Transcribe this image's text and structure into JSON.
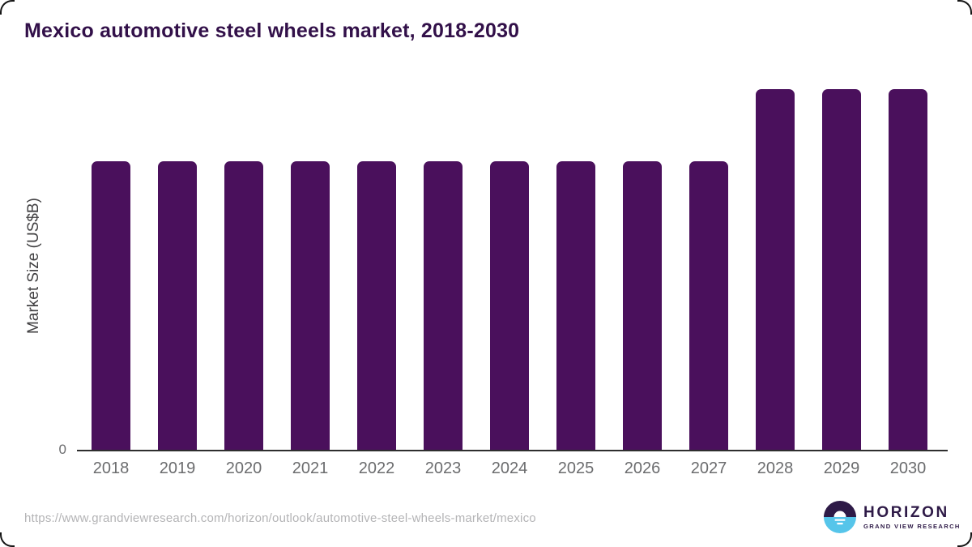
{
  "title": {
    "text": "Mexico automotive steel wheels market, 2018-2030",
    "color": "#321049"
  },
  "chart_data": {
    "type": "bar",
    "title": "Mexico automotive steel wheels market, 2018-2030",
    "categories": [
      "2018",
      "2019",
      "2020",
      "2021",
      "2022",
      "2023",
      "2024",
      "2025",
      "2026",
      "2027",
      "2028",
      "2029",
      "2030"
    ],
    "values": [
      0.8,
      0.8,
      0.8,
      0.8,
      0.8,
      0.8,
      0.8,
      0.8,
      0.8,
      0.8,
      1.0,
      1.0,
      1.0
    ],
    "xlabel": "",
    "ylabel": "Market Size (US$B)",
    "ylim": [
      0,
      1.0
    ],
    "y_tick_labels": [
      "0"
    ],
    "grid": false,
    "legend": false,
    "bar_color": "#4a105c",
    "axis_line_color": "#2e2e2e",
    "tick_label_color": "#6b6c6e"
  },
  "footer": {
    "source_url": "https://www.grandviewresearch.com/horizon/outlook/automotive-steel-wheels-market/mexico",
    "logo": {
      "brand": "HORIZON",
      "sub_brand": "GRAND VIEW RESEARCH",
      "icon": "sun-over-horizon-icon",
      "icon_top_color": "#2e1a47",
      "icon_bottom_color": "#56c5ea"
    }
  },
  "colors": {
    "background": "#ffffff",
    "title_text": "#321049",
    "bar_fill": "#4a105c",
    "axis_text": "#6b6c6e",
    "ylabel_text": "#414042",
    "url_text": "#b4b4b6",
    "logo_purple": "#2e1a47",
    "logo_blue": "#56c5ea"
  }
}
